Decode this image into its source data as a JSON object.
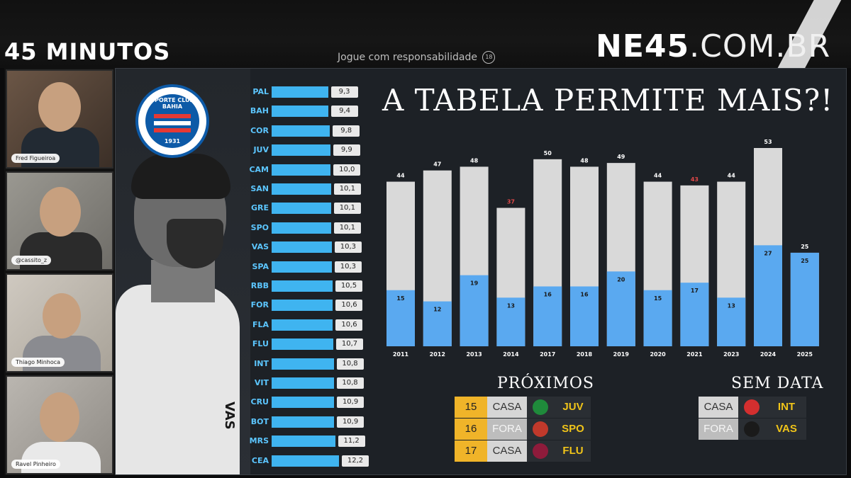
{
  "header": {
    "show_name": "45 MINUTOS",
    "responsible": "Jogue com responsabilidade",
    "age_badge": "18",
    "brand_bold": "NE45",
    "brand_light": ".COM.BR"
  },
  "participants": [
    {
      "name": "Fred Figueiroa",
      "bg": "#5a4a3f"
    },
    {
      "name": "@cassito_z",
      "bg": "#8a8a86"
    },
    {
      "name": "Thiago Minhoca",
      "bg": "#b9b3aa"
    },
    {
      "name": "Ravel Pinheiro",
      "bg": "#a5a19b"
    }
  ],
  "crest": {
    "top_text": "ESPORTE CLUBE BAHIA",
    "year": "1931"
  },
  "player_shirt_marks": [
    "VAS"
  ],
  "headline": "A TABELA PERMITE MAIS?!",
  "standings": [
    {
      "team": "PAL",
      "value": 9.3,
      "label": "9,3"
    },
    {
      "team": "BAH",
      "value": 9.4,
      "label": "9,4"
    },
    {
      "team": "COR",
      "value": 9.8,
      "label": "9,8"
    },
    {
      "team": "JUV",
      "value": 9.9,
      "label": "9,9"
    },
    {
      "team": "CAM",
      "value": 10.0,
      "label": "10,0"
    },
    {
      "team": "SAN",
      "value": 10.1,
      "label": "10,1"
    },
    {
      "team": "GRE",
      "value": 10.1,
      "label": "10,1"
    },
    {
      "team": "SPO",
      "value": 10.1,
      "label": "10,1"
    },
    {
      "team": "VAS",
      "value": 10.3,
      "label": "10,3"
    },
    {
      "team": "SPA",
      "value": 10.3,
      "label": "10,3"
    },
    {
      "team": "RBB",
      "value": 10.5,
      "label": "10,5"
    },
    {
      "team": "FOR",
      "value": 10.6,
      "label": "10,6"
    },
    {
      "team": "FLA",
      "value": 10.6,
      "label": "10,6"
    },
    {
      "team": "FLU",
      "value": 10.7,
      "label": "10,7"
    },
    {
      "team": "INT",
      "value": 10.8,
      "label": "10,8"
    },
    {
      "team": "VIT",
      "value": 10.8,
      "label": "10,8"
    },
    {
      "team": "CRU",
      "value": 10.9,
      "label": "10,9"
    },
    {
      "team": "BOT",
      "value": 10.9,
      "label": "10,9"
    },
    {
      "team": "MRS",
      "value": 11.2,
      "label": "11,2"
    },
    {
      "team": "CEA",
      "value": 12.2,
      "label": "12,2"
    }
  ],
  "chart_data": {
    "type": "bar",
    "title": "A TABELA PERMITE MAIS?!",
    "categories": [
      "2011",
      "2012",
      "2013",
      "2014",
      "2017",
      "2018",
      "2019",
      "2020",
      "2021",
      "2023",
      "2024",
      "2025"
    ],
    "series": [
      {
        "values": [
          44,
          47,
          48,
          37,
          50,
          48,
          49,
          44,
          43,
          44,
          53,
          25
        ],
        "color": "#d9d9d9"
      },
      {
        "values": [
          15,
          12,
          19,
          13,
          16,
          16,
          20,
          15,
          17,
          13,
          27,
          25
        ],
        "color": "#5aa9f0"
      }
    ],
    "highlight_total_color": "#e04848",
    "highlighted_totals": [
      "2014",
      "2021"
    ],
    "ylim": [
      0,
      53
    ],
    "grid": false,
    "colors": {
      "total": "#d9d9d9",
      "partial": "#5aa9f0"
    }
  },
  "proximos": {
    "title": "PRÓXIMOS",
    "rows": [
      {
        "round": "15",
        "venue": "CASA",
        "opponent": "JUV",
        "logo_color": "#1f8a3b"
      },
      {
        "round": "16",
        "venue": "FORA",
        "opponent": "SPO",
        "logo_color": "#c0392b"
      },
      {
        "round": "17",
        "venue": "CASA",
        "opponent": "FLU",
        "logo_color": "#8e1b3b"
      }
    ]
  },
  "sem_data": {
    "title": "SEM DATA",
    "rows": [
      {
        "venue": "CASA",
        "opponent": "INT",
        "logo_color": "#d32f2f"
      },
      {
        "venue": "FORA",
        "opponent": "VAS",
        "logo_color": "#1a1a1a"
      }
    ]
  }
}
